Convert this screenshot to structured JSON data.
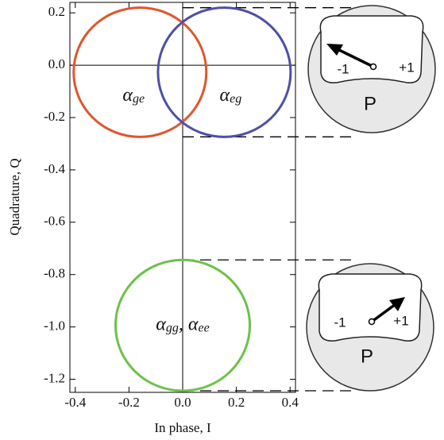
{
  "chart_data": {
    "type": "circles",
    "xlabel": "In phase, I",
    "ylabel": "Quadrature, Q",
    "xlim": [
      -0.42,
      0.42
    ],
    "ylim": [
      -1.25,
      0.24
    ],
    "xticks": [
      -0.4,
      -0.2,
      {
        "value": 0,
        "label": "0.0"
      },
      0.2,
      0.4
    ],
    "yticks": [
      0.2,
      {
        "value": 0,
        "label": "0.0"
      },
      -0.2,
      -0.4,
      -0.6,
      -0.8,
      {
        "value": -1,
        "label": "-1.0"
      },
      -1.2
    ],
    "series": [
      {
        "label_parts": [
          "α",
          "ge"
        ],
        "color": "#e0562b",
        "center_i": -0.159,
        "center_q": -0.027,
        "radius": 0.247
      },
      {
        "label_parts": [
          "α",
          "eg"
        ],
        "color": "#4f4fa8",
        "center_i": 0.155,
        "center_q": -0.027,
        "radius": 0.247
      },
      {
        "label_parts": [
          "α",
          "gg",
          ", α",
          "ee"
        ],
        "color": "#6cc24a",
        "center_i": 0,
        "center_q": -0.994,
        "radius": 0.25
      }
    ],
    "dials": [
      {
        "left": "-1",
        "right": "+1",
        "label": "P"
      },
      {
        "left": "-1",
        "right": "+1",
        "label": "P"
      }
    ]
  }
}
